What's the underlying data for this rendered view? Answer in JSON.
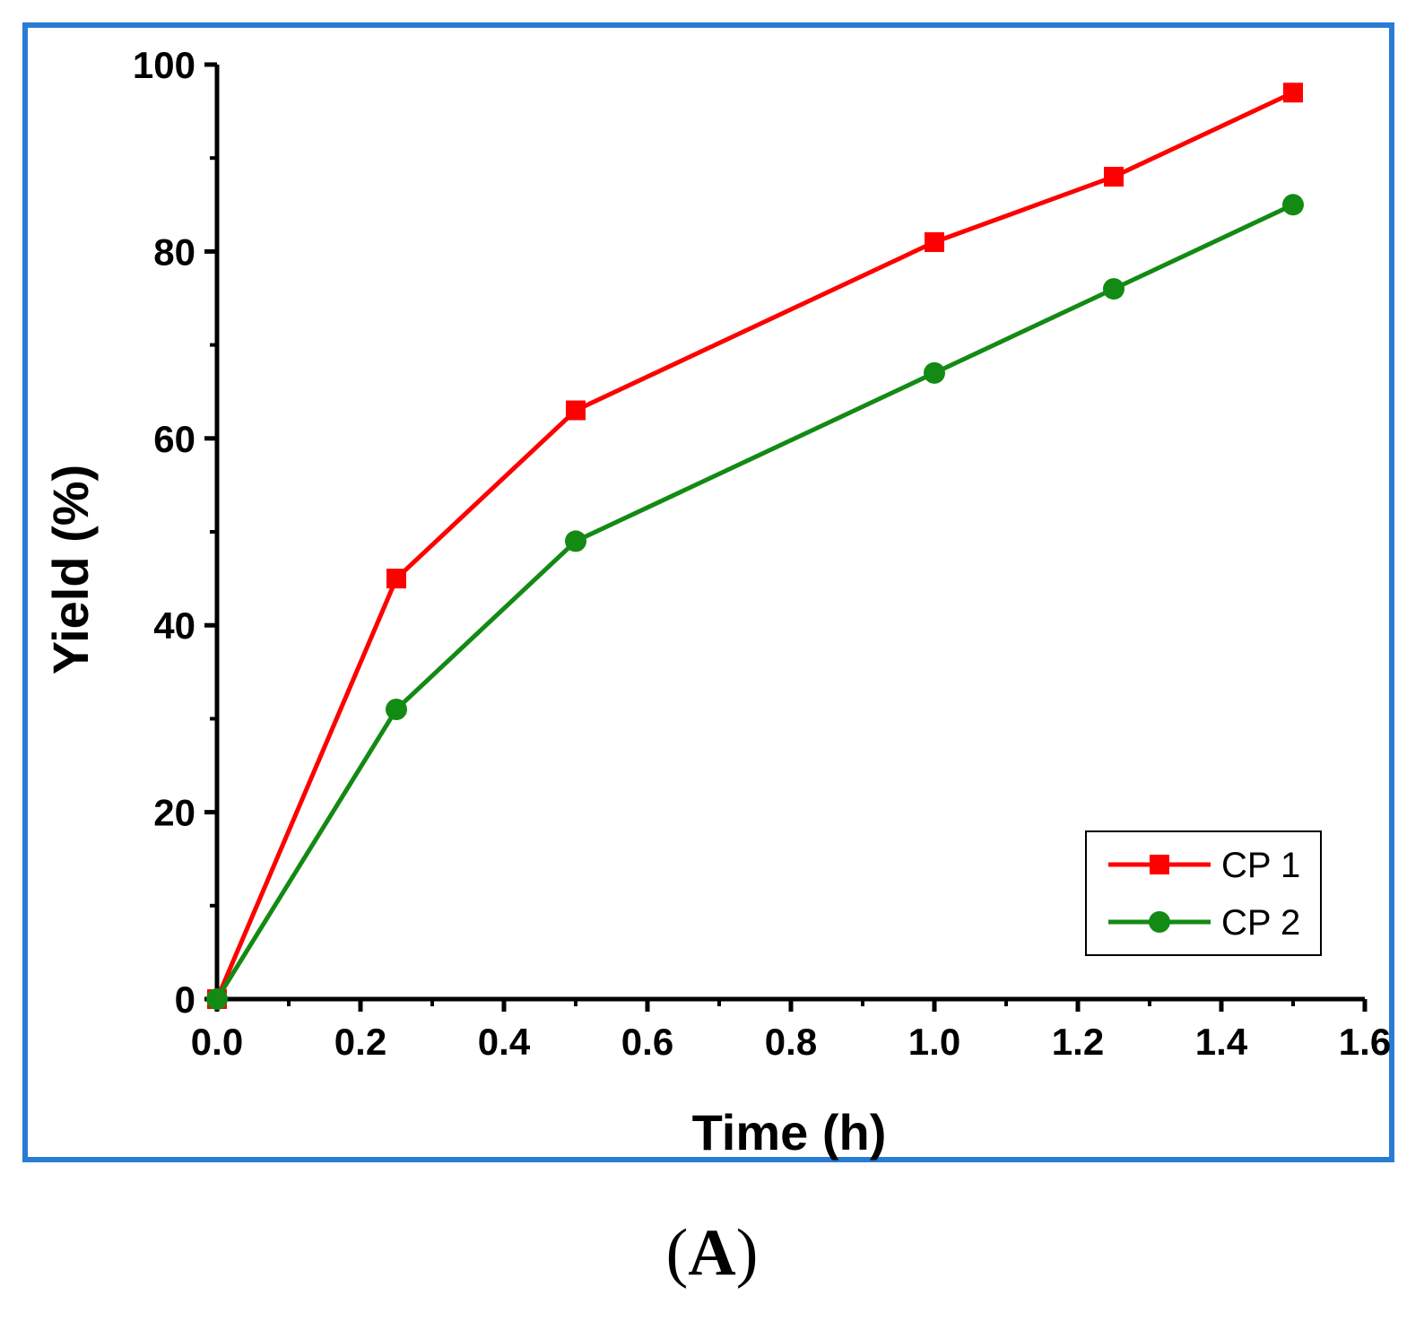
{
  "chart_data": {
    "type": "line",
    "xlabel": "Time (h)",
    "ylabel": "Yield (%)",
    "xlim": [
      0,
      1.6
    ],
    "ylim": [
      0,
      100
    ],
    "x_ticks": [
      "0.0",
      "0.2",
      "0.4",
      "0.6",
      "0.8",
      "1.0",
      "1.2",
      "1.4",
      "1.6"
    ],
    "y_ticks": [
      "0",
      "20",
      "40",
      "60",
      "80",
      "100"
    ],
    "legend_position": "bottom-right",
    "series": [
      {
        "name": "CP 1",
        "color": "#ff0000",
        "marker": "square",
        "x": [
          0,
          0.25,
          0.5,
          1.0,
          1.25,
          1.5
        ],
        "y": [
          0,
          45,
          63,
          81,
          88,
          97
        ]
      },
      {
        "name": "CP 2",
        "color": "#138a13",
        "marker": "circle",
        "x": [
          0,
          0.25,
          0.5,
          1.0,
          1.25,
          1.5
        ],
        "y": [
          0,
          31,
          49,
          67,
          76,
          85
        ]
      }
    ]
  },
  "frame_color": "#2a7bd5",
  "caption": {
    "open": "(",
    "label": "A",
    "close": ")"
  }
}
